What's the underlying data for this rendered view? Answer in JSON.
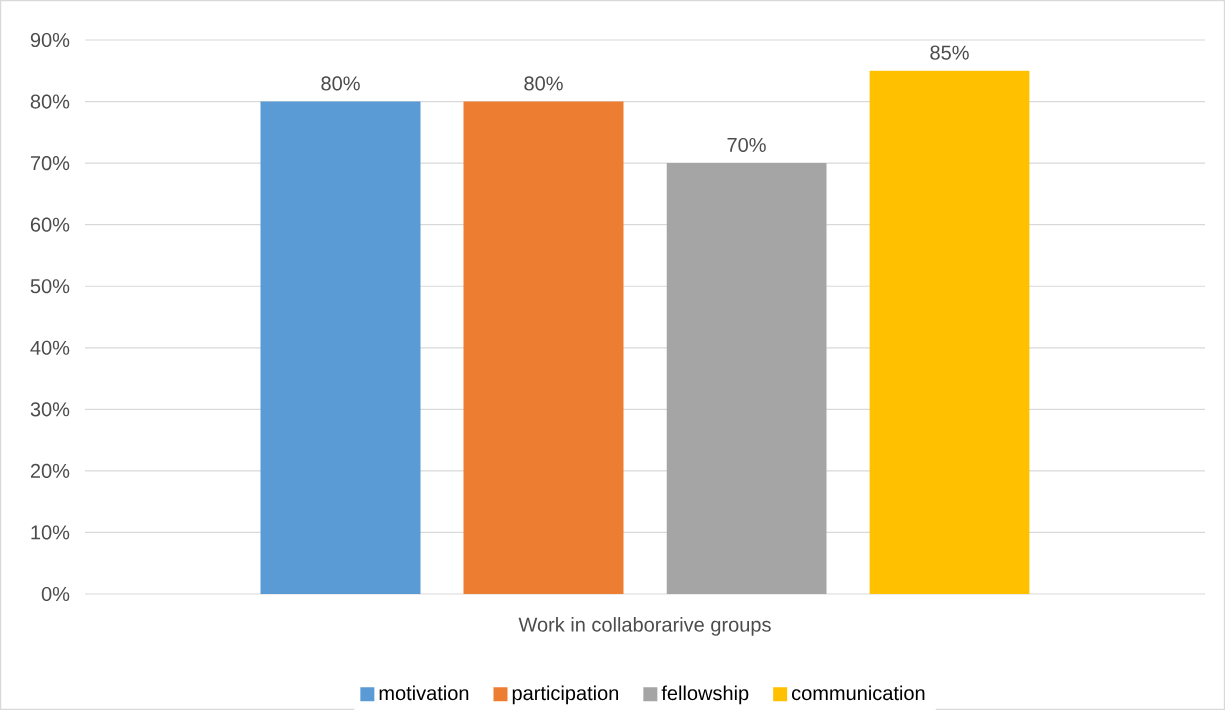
{
  "chart_data": {
    "type": "bar",
    "categories": [
      "Work in collaborarive groups"
    ],
    "series": [
      {
        "name": "motivation",
        "color": "#5b9bd5",
        "values": [
          80
        ],
        "value_labels": [
          "80%"
        ]
      },
      {
        "name": "participation",
        "color": "#ed7d31",
        "values": [
          80
        ],
        "value_labels": [
          "80%"
        ]
      },
      {
        "name": "fellowship",
        "color": "#a5a5a5",
        "values": [
          70
        ],
        "value_labels": [
          "70%"
        ]
      },
      {
        "name": "communication",
        "color": "#ffc000",
        "values": [
          85
        ],
        "value_labels": [
          "85%"
        ]
      }
    ],
    "ylim": [
      0,
      90
    ],
    "yticks": [
      {
        "value": 0,
        "label": "0%"
      },
      {
        "value": 10,
        "label": "10%"
      },
      {
        "value": 20,
        "label": "20%"
      },
      {
        "value": 30,
        "label": "30%"
      },
      {
        "value": 40,
        "label": "40%"
      },
      {
        "value": 50,
        "label": "50%"
      },
      {
        "value": 60,
        "label": "60%"
      },
      {
        "value": 70,
        "label": "70%"
      },
      {
        "value": 80,
        "label": "80%"
      },
      {
        "value": 90,
        "label": "90%"
      }
    ],
    "grid": "y",
    "legend": "bottom"
  }
}
